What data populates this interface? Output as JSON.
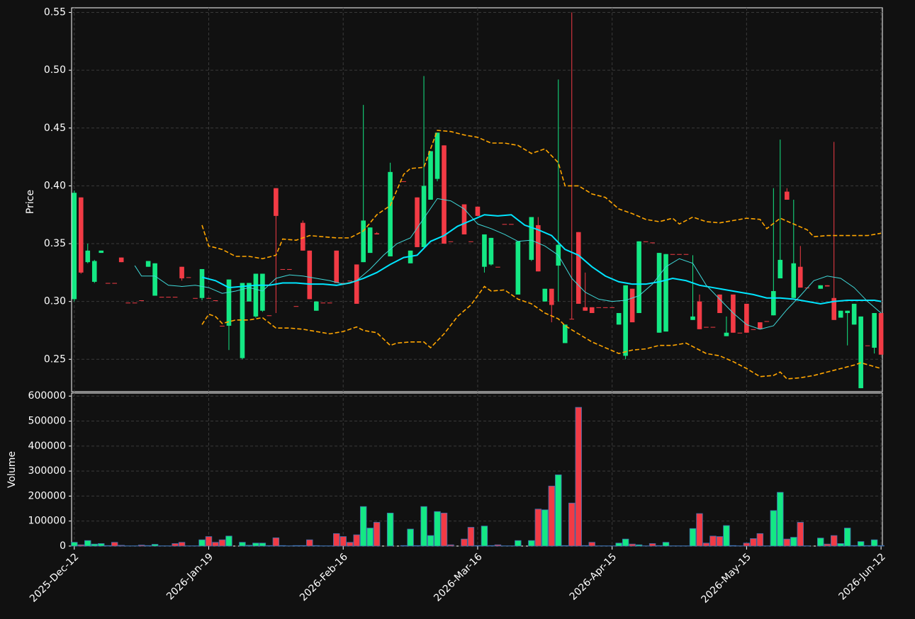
{
  "chart_data": [
    {
      "type": "candlestick",
      "ylabel": "Price",
      "xlim": [
        -0.4,
        120.2
      ],
      "ylim": [
        0.222,
        0.554
      ],
      "yticks": [
        0.25,
        {
          "value": 0.3,
          "label": "0.30"
        },
        0.35,
        {
          "value": 0.4,
          "label": "0.40"
        },
        0.45,
        {
          "value": 0.5,
          "label": "0.50"
        },
        0.55
      ],
      "grid": true,
      "up_color": "#14e884",
      "down_color": "#f23b45",
      "open": [
        0.302,
        0.39,
        0.334,
        0.317,
        0.342,
        0.316,
        0.316,
        0.338,
        0.299,
        0.299,
        0.301,
        0.33,
        0.305,
        0.304,
        0.304,
        0.304,
        0.33,
        0.321,
        0.303,
        0.303,
        0.303,
        0.301,
        0.279,
        0.279,
        null,
        0.251,
        0.3,
        0.287,
        0.292,
        0.288,
        0.398,
        0.328,
        0.328,
        0.296,
        0.368,
        0.344,
        0.292,
        0.299,
        0.299,
        0.344,
        0.316,
        0.318,
        0.332,
        0.334,
        0.342,
        0.359,
        null,
        0.339,
        null,
        0.404,
        0.333,
        0.39,
        0.347,
        0.388,
        0.406,
        0.435,
        0.352,
        null,
        0.384,
        0.352,
        0.382,
        0.33,
        0.332,
        0.33,
        0.367,
        0.367,
        0.306,
        null,
        0.336,
        0.366,
        0.3,
        0.311,
        0.331,
        0.264,
        0.285,
        0.36,
        0.295,
        0.295,
        0.295,
        0.295,
        0.295,
        0.28,
        0.253,
        0.311,
        0.29,
        0.352,
        0.351,
        0.273,
        0.274,
        0.341,
        0.341,
        0.341,
        0.284,
        0.3,
        0.278,
        0.278,
        0.306,
        0.27,
        0.306,
        0.273,
        0.298,
        0.276,
        0.282,
        0.283,
        0.288,
        0.32,
        0.395,
        0.303,
        0.33,
        0.312,
        null,
        0.311,
        0.314,
        0.303,
        0.286,
        0.29,
        0.28,
        0.225,
        0.262,
        0.26,
        0.29
      ],
      "high": [
        0.396,
        0.39,
        0.35,
        0.336,
        0.344,
        0.316,
        0.316,
        0.338,
        0.299,
        0.299,
        0.301,
        0.335,
        0.333,
        0.304,
        0.304,
        0.304,
        0.33,
        0.321,
        0.303,
        0.328,
        0.303,
        0.301,
        0.279,
        0.319,
        null,
        0.316,
        0.316,
        0.324,
        0.324,
        0.288,
        0.398,
        0.328,
        0.328,
        0.296,
        0.37,
        0.344,
        0.3,
        0.299,
        0.299,
        0.344,
        0.316,
        0.318,
        0.332,
        0.47,
        0.364,
        0.36,
        null,
        0.42,
        null,
        0.404,
        0.344,
        0.39,
        0.495,
        0.43,
        0.446,
        0.435,
        0.352,
        null,
        0.384,
        0.352,
        0.382,
        0.358,
        0.355,
        0.33,
        0.367,
        0.367,
        0.352,
        null,
        0.373,
        0.373,
        0.311,
        0.311,
        0.492,
        0.28,
        0.55,
        0.36,
        0.325,
        0.295,
        0.295,
        0.295,
        0.295,
        0.29,
        0.314,
        0.311,
        0.352,
        0.352,
        0.351,
        0.342,
        0.341,
        0.341,
        0.341,
        0.341,
        0.34,
        0.306,
        0.278,
        0.278,
        0.306,
        0.287,
        0.306,
        0.273,
        0.298,
        0.276,
        0.282,
        0.283,
        0.398,
        0.44,
        0.398,
        0.388,
        0.348,
        0.312,
        null,
        0.314,
        0.314,
        0.438,
        0.292,
        0.292,
        0.298,
        0.287,
        0.262,
        0.29,
        0.29
      ],
      "low": [
        0.3,
        0.324,
        0.333,
        0.316,
        0.342,
        0.316,
        0.316,
        0.334,
        0.299,
        0.299,
        0.301,
        0.33,
        0.305,
        0.304,
        0.304,
        0.304,
        0.318,
        0.321,
        0.303,
        0.301,
        0.303,
        0.301,
        0.279,
        0.258,
        null,
        0.25,
        0.3,
        0.286,
        0.291,
        0.288,
        0.29,
        0.328,
        0.328,
        0.296,
        0.344,
        0.302,
        0.292,
        0.299,
        0.299,
        0.316,
        0.316,
        0.318,
        0.298,
        0.334,
        0.342,
        0.358,
        null,
        0.339,
        null,
        0.404,
        0.333,
        0.347,
        0.347,
        0.388,
        0.404,
        0.35,
        0.352,
        null,
        0.358,
        0.352,
        0.374,
        0.325,
        0.331,
        0.33,
        0.367,
        0.367,
        0.306,
        null,
        0.335,
        0.326,
        0.3,
        0.282,
        0.3,
        0.264,
        0.285,
        0.298,
        0.292,
        0.29,
        0.295,
        0.295,
        0.295,
        0.28,
        0.25,
        0.282,
        0.29,
        0.352,
        0.351,
        0.273,
        0.274,
        0.341,
        0.341,
        0.341,
        0.284,
        0.276,
        0.278,
        0.278,
        0.29,
        0.27,
        0.273,
        0.273,
        0.273,
        0.276,
        0.276,
        0.283,
        0.288,
        0.32,
        0.388,
        0.303,
        0.312,
        0.312,
        null,
        0.311,
        0.313,
        0.284,
        0.286,
        0.262,
        0.28,
        0.225,
        0.262,
        0.255,
        0.254
      ],
      "close": [
        0.394,
        0.325,
        0.344,
        0.335,
        0.344,
        0.316,
        0.316,
        0.334,
        0.299,
        0.299,
        0.301,
        0.335,
        0.333,
        0.304,
        0.304,
        0.304,
        0.32,
        0.321,
        0.303,
        0.328,
        0.303,
        0.301,
        0.279,
        0.319,
        null,
        0.316,
        0.316,
        0.324,
        0.324,
        0.288,
        0.374,
        0.328,
        0.328,
        0.296,
        0.344,
        0.302,
        0.3,
        0.299,
        0.299,
        0.316,
        0.316,
        0.318,
        0.298,
        0.37,
        0.364,
        0.358,
        null,
        0.412,
        null,
        0.404,
        0.344,
        0.347,
        0.4,
        0.43,
        0.446,
        0.35,
        0.352,
        null,
        0.358,
        0.352,
        0.374,
        0.358,
        0.355,
        0.33,
        0.367,
        0.367,
        0.352,
        null,
        0.373,
        0.326,
        0.311,
        0.297,
        0.349,
        0.28,
        0.285,
        0.298,
        0.292,
        0.29,
        0.295,
        0.295,
        0.295,
        0.29,
        0.314,
        0.282,
        0.352,
        0.352,
        0.351,
        0.342,
        0.341,
        0.341,
        0.341,
        0.341,
        0.287,
        0.276,
        0.278,
        0.278,
        0.29,
        0.273,
        0.273,
        0.273,
        0.273,
        0.276,
        0.276,
        0.283,
        0.309,
        0.336,
        0.388,
        0.333,
        0.312,
        0.312,
        null,
        0.314,
        0.313,
        0.284,
        0.292,
        0.292,
        0.298,
        0.287,
        0.262,
        0.29,
        0.254
      ],
      "lines": [
        {
          "color": "#00e5ff",
          "width": 2,
          "style": "solid",
          "x": [
            19,
            21,
            23,
            25,
            27,
            29,
            31,
            33,
            35,
            37,
            39,
            41,
            43,
            45,
            47,
            49,
            51,
            53,
            55,
            57,
            59,
            61,
            63,
            65,
            67,
            69,
            71,
            73,
            75,
            77,
            79,
            81,
            83,
            85,
            87,
            89,
            91,
            93,
            95,
            97,
            99,
            101,
            103,
            105,
            107,
            109,
            111,
            113,
            115,
            117,
            119,
            120
          ],
          "values": [
            0.321,
            0.318,
            0.312,
            0.313,
            0.314,
            0.314,
            0.316,
            0.316,
            0.315,
            0.315,
            0.314,
            0.316,
            0.32,
            0.325,
            0.332,
            0.338,
            0.34,
            0.352,
            0.357,
            0.365,
            0.37,
            0.375,
            0.374,
            0.375,
            0.366,
            0.362,
            0.357,
            0.345,
            0.34,
            0.33,
            0.322,
            0.317,
            0.315,
            0.315,
            0.317,
            0.32,
            0.318,
            0.314,
            0.312,
            0.31,
            0.308,
            0.306,
            0.303,
            0.303,
            0.302,
            0.3,
            0.298,
            0.3,
            0.301,
            0.301,
            0.301,
            0.3
          ]
        },
        {
          "color": "#3fd8d8",
          "width": 1,
          "style": "solid",
          "x": [
            9,
            10,
            12,
            14,
            16,
            18,
            20,
            22,
            24,
            26,
            28,
            30,
            32,
            34,
            36,
            38,
            40,
            42,
            44,
            46,
            48,
            50,
            52,
            54,
            56,
            58,
            60,
            62,
            64,
            66,
            68,
            70,
            72,
            74,
            76,
            78,
            80,
            82,
            84,
            86,
            88,
            90,
            92,
            94,
            96,
            98,
            100,
            102,
            104,
            106,
            108,
            110,
            112,
            114,
            116,
            118,
            120
          ],
          "values": [
            0.331,
            0.322,
            0.322,
            0.314,
            0.313,
            0.314,
            0.312,
            0.307,
            0.309,
            0.312,
            0.309,
            0.32,
            0.323,
            0.322,
            0.32,
            0.318,
            0.315,
            0.318,
            0.328,
            0.34,
            0.35,
            0.355,
            0.372,
            0.389,
            0.387,
            0.38,
            0.367,
            0.363,
            0.358,
            0.352,
            0.353,
            0.348,
            0.34,
            0.32,
            0.308,
            0.302,
            0.3,
            0.301,
            0.305,
            0.315,
            0.33,
            0.337,
            0.333,
            0.314,
            0.302,
            0.29,
            0.28,
            0.276,
            0.279,
            0.293,
            0.305,
            0.318,
            0.322,
            0.32,
            0.312,
            0.3,
            0.29
          ]
        },
        {
          "color": "#ffa500",
          "width": 1.6,
          "style": "dashed",
          "x": [
            19,
            20,
            22,
            24,
            26,
            28,
            30,
            31,
            33,
            35,
            37,
            39,
            41,
            43,
            45,
            47,
            49,
            50,
            52,
            54,
            56,
            58,
            60,
            62,
            64,
            66,
            68,
            70,
            72,
            73,
            75,
            77,
            79,
            81,
            83,
            85,
            87,
            89,
            90,
            92,
            94,
            96,
            98,
            100,
            102,
            103,
            105,
            107,
            109,
            110,
            112,
            114,
            116,
            118,
            120
          ],
          "values": [
            0.366,
            0.348,
            0.345,
            0.339,
            0.339,
            0.337,
            0.34,
            0.354,
            0.353,
            0.357,
            0.356,
            0.355,
            0.355,
            0.361,
            0.375,
            0.383,
            0.41,
            0.415,
            0.416,
            0.448,
            0.447,
            0.444,
            0.442,
            0.437,
            0.437,
            0.435,
            0.428,
            0.432,
            0.42,
            0.4,
            0.4,
            0.393,
            0.39,
            0.38,
            0.376,
            0.371,
            0.369,
            0.372,
            0.367,
            0.373,
            0.369,
            0.368,
            0.37,
            0.372,
            0.371,
            0.363,
            0.372,
            0.367,
            0.362,
            0.356,
            0.357,
            0.357,
            0.357,
            0.357,
            0.359
          ]
        },
        {
          "color": "#ffa500",
          "width": 1.6,
          "style": "dashed",
          "x": [
            19,
            20,
            21,
            22,
            24,
            26,
            28,
            30,
            32,
            34,
            36,
            38,
            40,
            42,
            43,
            45,
            47,
            48,
            50,
            52,
            53,
            55,
            57,
            59,
            61,
            62,
            64,
            66,
            68,
            70,
            72,
            73,
            75,
            77,
            79,
            81,
            83,
            85,
            87,
            89,
            91,
            92,
            94,
            96,
            98,
            100,
            102,
            104,
            105,
            106,
            108,
            110,
            112,
            114,
            116,
            117,
            120
          ],
          "values": [
            0.28,
            0.289,
            0.287,
            0.281,
            0.284,
            0.284,
            0.286,
            0.277,
            0.277,
            0.276,
            0.274,
            0.272,
            0.274,
            0.278,
            0.275,
            0.273,
            0.262,
            0.264,
            0.265,
            0.265,
            0.26,
            0.272,
            0.287,
            0.297,
            0.313,
            0.309,
            0.31,
            0.302,
            0.298,
            0.29,
            0.285,
            0.279,
            0.272,
            0.265,
            0.26,
            0.255,
            0.258,
            0.259,
            0.262,
            0.262,
            0.264,
            0.261,
            0.255,
            0.253,
            0.248,
            0.242,
            0.235,
            0.236,
            0.239,
            0.233,
            0.234,
            0.236,
            0.239,
            0.242,
            0.245,
            0.247,
            0.242
          ]
        }
      ]
    },
    {
      "type": "bar",
      "ylabel": "Volume",
      "xlim": [
        -0.4,
        120.2
      ],
      "ylim": [
        0,
        612000
      ],
      "yticks": [
        0,
        100000,
        200000,
        300000,
        400000,
        500000,
        600000
      ],
      "grid": true,
      "xticks": [
        {
          "value": 0,
          "label": "2025-Dec-12"
        },
        {
          "value": 20,
          "label": "2026-Jan-19"
        },
        {
          "value": 40,
          "label": "2026-Feb-16"
        },
        {
          "value": 60,
          "label": "2026-Mar-16"
        },
        {
          "value": 80,
          "label": "2026-Apr-15"
        },
        {
          "value": 100,
          "label": "2026-May-15"
        },
        {
          "value": 120,
          "label": "2026-Jun-12"
        }
      ],
      "values": [
        15000,
        5000,
        22000,
        8000,
        10000,
        2000,
        15000,
        3000,
        1000,
        1000,
        4000,
        2000,
        7000,
        1000,
        1000,
        10000,
        15000,
        1000,
        1000,
        25000,
        38000,
        15000,
        25000,
        40000,
        null,
        15000,
        3000,
        12000,
        12000,
        2000,
        33000,
        2000,
        1000,
        2000,
        2000,
        25000,
        2000,
        1000,
        1000,
        50000,
        38000,
        15000,
        45000,
        158000,
        72000,
        95000,
        null,
        132000,
        null,
        2000,
        68000,
        2000,
        158000,
        42000,
        138000,
        132000,
        5000,
        null,
        28000,
        75000,
        2000,
        80000,
        2000,
        5000,
        1000,
        1000,
        22000,
        null,
        22000,
        148000,
        145000,
        240000,
        285000,
        2000,
        172000,
        555000,
        2000,
        15000,
        1000,
        1000,
        1000,
        12000,
        28000,
        8000,
        5000,
        1000,
        10000,
        2000,
        15000,
        1000,
        1000,
        1000,
        70000,
        130000,
        12000,
        40000,
        38000,
        82000,
        2000,
        1000,
        12000,
        30000,
        50000,
        1000,
        142000,
        215000,
        28000,
        35000,
        95000,
        1000,
        null,
        32000,
        8000,
        42000,
        10000,
        72000,
        2000,
        18000,
        2000,
        25000,
        2000
      ]
    }
  ]
}
